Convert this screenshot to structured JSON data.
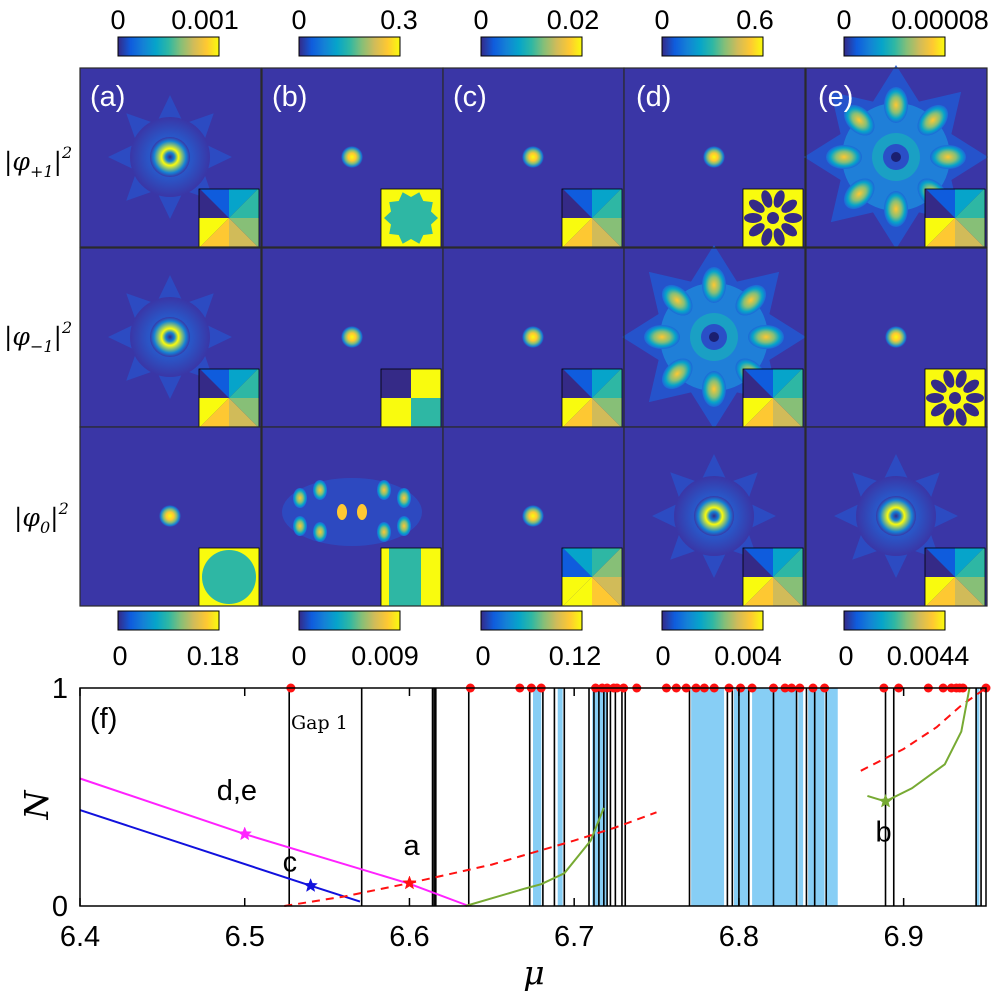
{
  "colors": {
    "background_panel": "#3a36a6",
    "parula": [
      "#352a87",
      "#0f5cdd",
      "#1481d6",
      "#06a4ca",
      "#2eb7a4",
      "#87bf77",
      "#d1bb59",
      "#fec832",
      "#f9fb0e"
    ],
    "band_fill": "#87cef5",
    "pink": "#ff22ff",
    "blue": "#1111dd",
    "red": "#ff1111",
    "green": "#77aa33"
  },
  "panels": {
    "columns": [
      {
        "tag": "(a)",
        "top_cb": [
          "0",
          "0.001"
        ],
        "bottom_cb": [
          "0",
          "0.18"
        ]
      },
      {
        "tag": "(b)",
        "top_cb": [
          "0",
          "0.3"
        ],
        "bottom_cb": [
          "0",
          "0.009"
        ]
      },
      {
        "tag": "(c)",
        "top_cb": [
          "0",
          "0.02"
        ],
        "bottom_cb": [
          "0",
          "0.12"
        ]
      },
      {
        "tag": "(d)",
        "top_cb": [
          "0",
          "0.6"
        ],
        "bottom_cb": [
          "0",
          "0.004"
        ]
      },
      {
        "tag": "(e)",
        "top_cb": [
          "0",
          "0.00008"
        ],
        "bottom_cb": [
          "0",
          "0.0044"
        ]
      }
    ],
    "row_labels": [
      {
        "base": "|φ",
        "sub": "+1",
        "tail": "|",
        "sup": "2"
      },
      {
        "base": "|φ",
        "sub": "−1",
        "tail": "|",
        "sup": "2"
      },
      {
        "base": "|φ",
        "sub": "0",
        "tail": "|",
        "sup": "2"
      }
    ],
    "density_patterns": [
      [
        "ring-star",
        "dot",
        "dot",
        "dot",
        "big-star"
      ],
      [
        "ring-star",
        "dot",
        "dot",
        "big-star",
        "dot"
      ],
      [
        "dot",
        "dumbbell",
        "dot",
        "ring-star",
        "ring-star"
      ]
    ],
    "phase_insets": [
      [
        "swirl",
        "blob",
        "swirl",
        "flower",
        "swirl"
      ],
      [
        "swirl",
        "checker",
        "swirl",
        "swirl",
        "flower"
      ],
      [
        "disk",
        "split",
        "swirl-soft",
        "swirl",
        "swirl"
      ]
    ]
  },
  "chart_data": {
    "type": "line",
    "panel_tag": "(f)",
    "xlabel": "μ",
    "ylabel": "N",
    "xlim": [
      6.4,
      6.95
    ],
    "ylim": [
      0,
      1
    ],
    "xticks": [
      6.4,
      6.5,
      6.6,
      6.7,
      6.8,
      6.9
    ],
    "xtick_labels": [
      "6.4",
      "6.5",
      "6.6",
      "6.7",
      "6.8",
      "6.9"
    ],
    "yticks": [
      0,
      1
    ],
    "ytick_labels": [
      "0",
      "1"
    ],
    "annotation": "Gap 1",
    "band_lines": [
      6.527,
      6.571,
      6.614,
      6.615,
      6.616,
      6.636,
      6.673,
      6.681,
      6.688,
      6.694,
      6.709,
      6.712,
      6.715,
      6.718,
      6.72,
      6.722,
      6.725,
      6.729,
      6.731,
      6.77,
      6.793,
      6.796,
      6.8,
      6.806,
      6.821,
      6.835,
      6.841,
      6.846,
      6.853,
      6.889,
      6.894,
      6.944,
      6.947
    ],
    "band_fills": [
      [
        6.675,
        6.68
      ],
      [
        6.69,
        6.693
      ],
      [
        6.711,
        6.72
      ],
      [
        6.771,
        6.791
      ],
      [
        6.797,
        6.806
      ],
      [
        6.808,
        6.835
      ],
      [
        6.836,
        6.839
      ],
      [
        6.842,
        6.852
      ],
      [
        6.853,
        6.86
      ],
      [
        6.944,
        6.946
      ]
    ],
    "series": [
      {
        "key": "pink",
        "style": "solid",
        "points": [
          [
            6.4,
            0.585
          ],
          [
            6.5,
            0.33
          ],
          [
            6.6,
            0.102
          ],
          [
            6.636,
            0.0
          ]
        ]
      },
      {
        "key": "blue",
        "style": "solid",
        "points": [
          [
            6.4,
            0.44
          ],
          [
            6.54,
            0.093
          ],
          [
            6.57,
            0.02
          ]
        ]
      },
      {
        "key": "red",
        "style": "dashed",
        "points": [
          [
            6.524,
            0.0
          ],
          [
            6.56,
            0.043
          ],
          [
            6.6,
            0.105
          ],
          [
            6.65,
            0.19
          ],
          [
            6.7,
            0.3
          ],
          [
            6.725,
            0.36
          ],
          [
            6.75,
            0.43
          ]
        ]
      },
      {
        "key": "red",
        "style": "dashed",
        "points": [
          [
            6.874,
            0.62
          ],
          [
            6.9,
            0.72
          ],
          [
            6.92,
            0.82
          ],
          [
            6.935,
            0.92
          ],
          [
            6.95,
            1.0
          ]
        ]
      },
      {
        "key": "green",
        "style": "solid",
        "points": [
          [
            6.634,
            0.0
          ],
          [
            6.67,
            0.08
          ],
          [
            6.68,
            0.1
          ],
          [
            6.694,
            0.15
          ],
          [
            6.71,
            0.3
          ],
          [
            6.718,
            0.45
          ]
        ]
      },
      {
        "key": "green",
        "style": "solid",
        "points": [
          [
            6.878,
            0.505
          ],
          [
            6.889,
            0.48
          ],
          [
            6.905,
            0.54
          ],
          [
            6.925,
            0.65
          ],
          [
            6.935,
            0.8
          ],
          [
            6.94,
            1.0
          ]
        ]
      }
    ],
    "red_dots_x": [
      6.528,
      6.637,
      6.667,
      6.674,
      6.68,
      6.713,
      6.717,
      6.72,
      6.724,
      6.726,
      6.73,
      6.738,
      6.756,
      6.762,
      6.768,
      6.774,
      6.779,
      6.785,
      6.794,
      6.801,
      6.808,
      6.821,
      6.828,
      6.832,
      6.837,
      6.845,
      6.852,
      6.888,
      6.897,
      6.915,
      6.924,
      6.929,
      6.932,
      6.934,
      6.936,
      6.95
    ],
    "markers": [
      {
        "label": "d,e",
        "x": 6.5,
        "y": 0.33,
        "key": "pink"
      },
      {
        "label": "c",
        "x": 6.54,
        "y": 0.093,
        "key": "blue"
      },
      {
        "label": "a",
        "x": 6.6,
        "y": 0.105,
        "key": "red"
      },
      {
        "label": "b",
        "x": 6.889,
        "y": 0.48,
        "key": "green"
      }
    ]
  }
}
